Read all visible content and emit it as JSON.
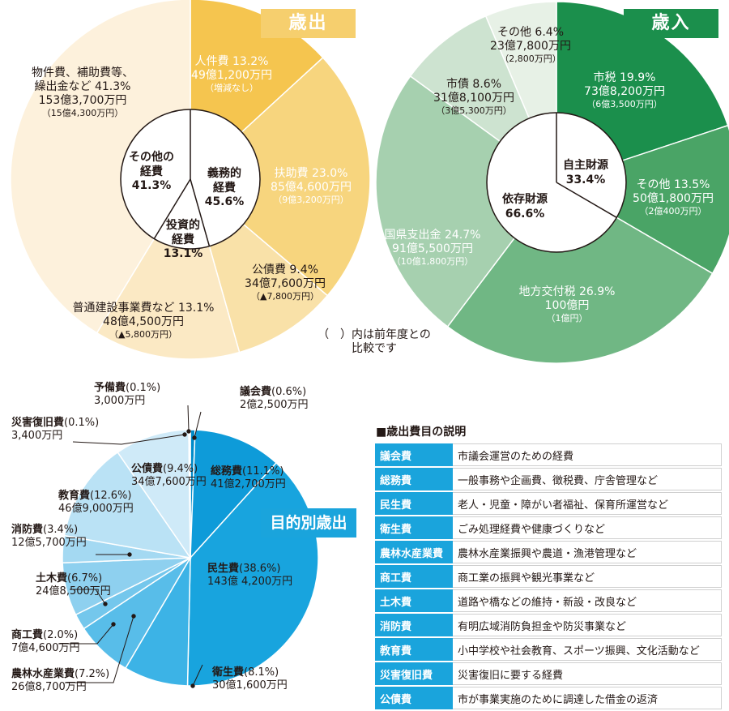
{
  "colors": {
    "expense_bg": "#fdf0d6",
    "revenue_bg": "#ecf3ea",
    "expense_badge": "#f6cf6e",
    "revenue_badge": "#1b8f4c",
    "purpose_badge": "#1aa4dc",
    "table_head": "#1aa4dc"
  },
  "expenditure": {
    "badge": "歳出",
    "center": {
      "mandatory": [
        "義務的",
        "経費",
        "45.6%"
      ],
      "investment": [
        "投資的",
        "経費",
        "13.1%"
      ],
      "other": [
        "その他の",
        "経費",
        "41.3%"
      ]
    },
    "labels": {
      "personnel": [
        "人件費 13.2%",
        "49億1,200万円",
        "（増減なし）"
      ],
      "welfare": [
        "扶助費 23.0%",
        "85億4,600万円",
        "（9億3,200万円）"
      ],
      "debt": [
        "公債費 9.4%",
        "34億7,600万円",
        "（▲7,800万円）"
      ],
      "construction": [
        "普通建設事業費など 13.1%",
        "48億4,500万円",
        "（▲5,800万円）"
      ],
      "goods": [
        "物件費、補助費等、",
        "繰出金など 41.3%",
        "153億3,700万円",
        "（15億4,300万円）"
      ]
    }
  },
  "revenue": {
    "badge": "歳入",
    "center": {
      "own": [
        "自主財源",
        "33.4%"
      ],
      "dependent": [
        "依存財源",
        "66.6%"
      ]
    },
    "labels": {
      "city_tax": [
        "市税 19.9%",
        "73億8,200万円",
        "（6億3,500万円）"
      ],
      "other_own": [
        "その他 13.5%",
        "50億1,800万円",
        "（2億400万円）"
      ],
      "local_alloc": [
        "地方交付税 26.9%",
        "100億円",
        "（1億円）"
      ],
      "subsidy": [
        "国県支出金 24.7%",
        "91億5,500万円",
        "（10億1,800万円）"
      ],
      "city_bond": [
        "市債 8.6%",
        "31億8,100万円",
        "（3億5,300万円）"
      ],
      "other_dep": [
        "その他 6.4%",
        "23億7,800万円",
        "（2,800万円）"
      ]
    }
  },
  "note": [
    "（　）内は前年度との",
    "比較です"
  ],
  "purpose": {
    "badge": "目的別歳出",
    "labels": {
      "yobi": [
        "予備費",
        "(0.1%)",
        "3,000万円"
      ],
      "gikai": [
        "議会費",
        "(0.6%)",
        "2億2,500万円"
      ],
      "saigai": [
        "災害復旧費",
        "(0.1%)",
        "3,400万円"
      ],
      "kosai": [
        "公債費",
        "(9.4%)",
        "34億7,600万円"
      ],
      "somu": [
        "総務費",
        "(11.1%)",
        "41億2,700万円"
      ],
      "kyoiku": [
        "教育費",
        "(12.6%)",
        "46億9,000万円"
      ],
      "shobo": [
        "消防費",
        "(3.4%)",
        "12億5,700万円"
      ],
      "doboku": [
        "土木費",
        "(6.7%)",
        "24億8,500万円"
      ],
      "minsei": [
        "民生費",
        "(38.6%)",
        "143億 4,200万円"
      ],
      "shoko": [
        "商工費",
        "(2.0%)",
        "7億4,600万円"
      ],
      "norin": [
        "農林水産業費",
        "(7.2%)",
        "26億8,700万円"
      ],
      "eisei": [
        "衛生費",
        "(8.1%)",
        "30億1,600万円"
      ]
    }
  },
  "table": {
    "title": "■歳出費目の説明",
    "rows": [
      {
        "key": "議会費",
        "desc": "市議会運営のための経費"
      },
      {
        "key": "総務費",
        "desc": "一般事務や企画費、徴税費、庁舎管理など"
      },
      {
        "key": "民生費",
        "desc": "老人・児童・障がい者福祉、保育所運営など"
      },
      {
        "key": "衛生費",
        "desc": "ごみ処理経費や健康づくりなど"
      },
      {
        "key": "農林水産業費",
        "desc": "農林水産業振興や農道・漁港管理など"
      },
      {
        "key": "商工費",
        "desc": "商工業の振興や観光事業など"
      },
      {
        "key": "土木費",
        "desc": "道路や橋などの維持・新設・改良など"
      },
      {
        "key": "消防費",
        "desc": "有明広域消防負担金や防災事業など"
      },
      {
        "key": "教育費",
        "desc": "小中学校や社会教育、スポーツ振興、文化活動など"
      },
      {
        "key": "災害復旧費",
        "desc": "災害復旧に要する経費"
      },
      {
        "key": "公債費",
        "desc": "市が事業実施のために調達した借金の返済"
      }
    ]
  },
  "chart_data": [
    {
      "type": "pie",
      "title": "歳出",
      "categories": [
        "人件費",
        "扶助費",
        "公債費",
        "普通建設事業費など",
        "物件費、補助費等、繰出金など"
      ],
      "values": [
        13.2,
        23.0,
        9.4,
        13.1,
        41.3
      ],
      "amounts": [
        "49億1,200万円",
        "85億4,600万円",
        "34億7,600万円",
        "48億4,500万円",
        "153億3,700万円"
      ],
      "inner": {
        "categories": [
          "義務的経費",
          "投資的経費",
          "その他の経費"
        ],
        "values": [
          45.6,
          13.1,
          41.3
        ]
      },
      "colors": [
        "#f5c54f",
        "#f7d57e",
        "#f9e1a8",
        "#fbe9c4",
        "#fdf1dc"
      ]
    },
    {
      "type": "pie",
      "title": "歳入",
      "categories": [
        "市税",
        "その他",
        "地方交付税",
        "国県支出金",
        "市債",
        "その他"
      ],
      "values": [
        19.9,
        13.5,
        26.9,
        24.7,
        8.6,
        6.4
      ],
      "amounts": [
        "73億8,200万円",
        "50億1,800万円",
        "100億円",
        "91億5,500万円",
        "31億8,100万円",
        "23億7,800万円"
      ],
      "inner": {
        "categories": [
          "自主財源",
          "依存財源"
        ],
        "values": [
          33.4,
          66.6
        ]
      },
      "colors": [
        "#1b8f4c",
        "#4aa466",
        "#70b784",
        "#a6d0af",
        "#cde3d0",
        "#e7f1e6"
      ]
    },
    {
      "type": "pie",
      "title": "目的別歳出",
      "categories": [
        "議会費",
        "総務費",
        "民生費",
        "衛生費",
        "農林水産業費",
        "商工費",
        "土木費",
        "消防費",
        "教育費",
        "公債費",
        "災害復旧費",
        "予備費"
      ],
      "values": [
        0.6,
        11.1,
        38.6,
        8.1,
        7.2,
        2.0,
        6.7,
        3.4,
        12.6,
        9.4,
        0.1,
        0.1
      ],
      "colors": [
        "#008bc9",
        "#0e9bd9",
        "#18a4de",
        "#3cb3e6",
        "#58bde9",
        "#74c7ec",
        "#8ed0ef",
        "#a4d9f2",
        "#bae2f5",
        "#cfeaf8",
        "#dff1fa",
        "#eef7fc"
      ]
    }
  ]
}
